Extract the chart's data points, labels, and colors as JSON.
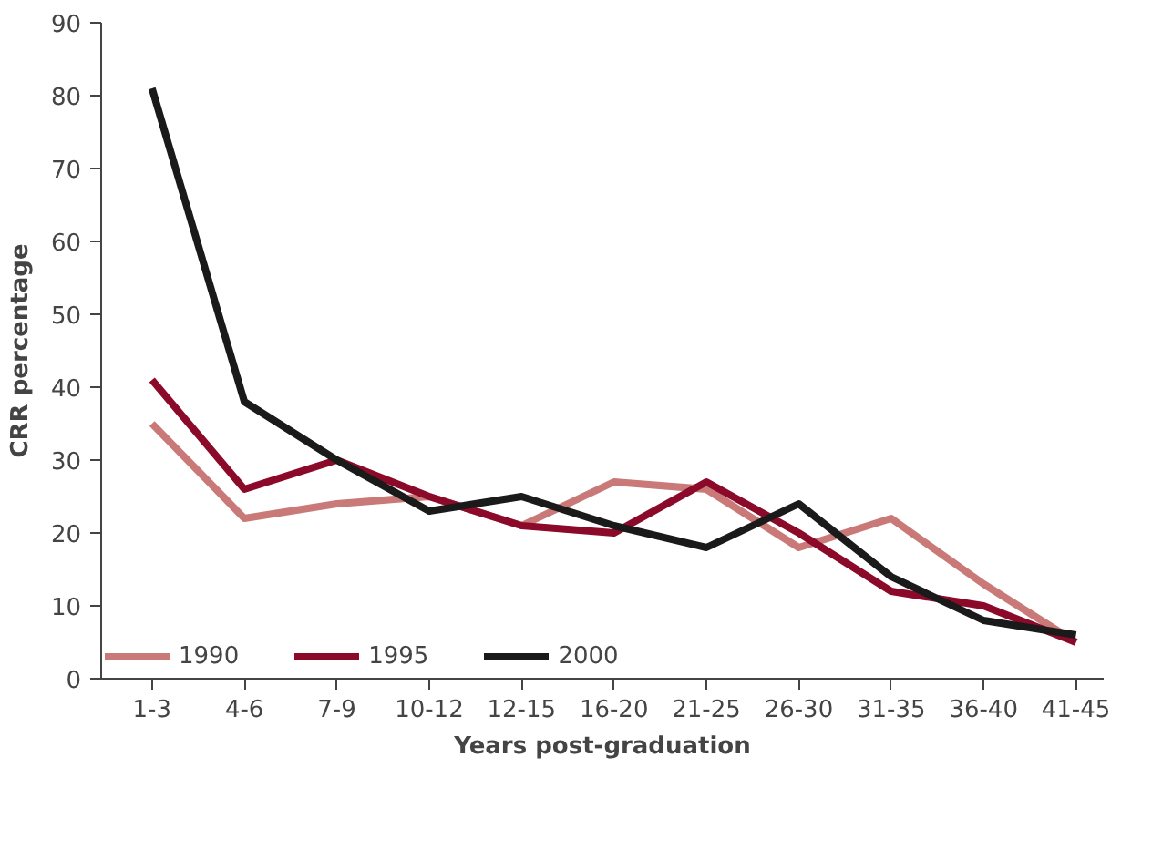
{
  "chart_data": {
    "type": "line",
    "xlabel": "Years post-graduation",
    "ylabel": "CRR percentage",
    "categories": [
      "1-3",
      "4-6",
      "7-9",
      "10-12",
      "12-15",
      "16-20",
      "21-25",
      "26-30",
      "31-35",
      "36-40",
      "41-45"
    ],
    "series": [
      {
        "name": "1990",
        "color": "#c97a78",
        "values": [
          35,
          22,
          24,
          25,
          21,
          27,
          26,
          18,
          22,
          13,
          5
        ]
      },
      {
        "name": "1995",
        "color": "#8b0a2a",
        "values": [
          41,
          26,
          30,
          25,
          21,
          20,
          27,
          20,
          12,
          10,
          5
        ]
      },
      {
        "name": "2000",
        "color": "#1a1a1a",
        "values": [
          81,
          38,
          30,
          23,
          25,
          21,
          18,
          24,
          14,
          8,
          6
        ]
      }
    ],
    "ylim": [
      0,
      90
    ],
    "yticks": [
      0,
      10,
      20,
      30,
      40,
      50,
      60,
      70,
      80,
      90
    ],
    "grid": false,
    "legend": "bottom left",
    "marker": "none",
    "line_style": "solid"
  }
}
